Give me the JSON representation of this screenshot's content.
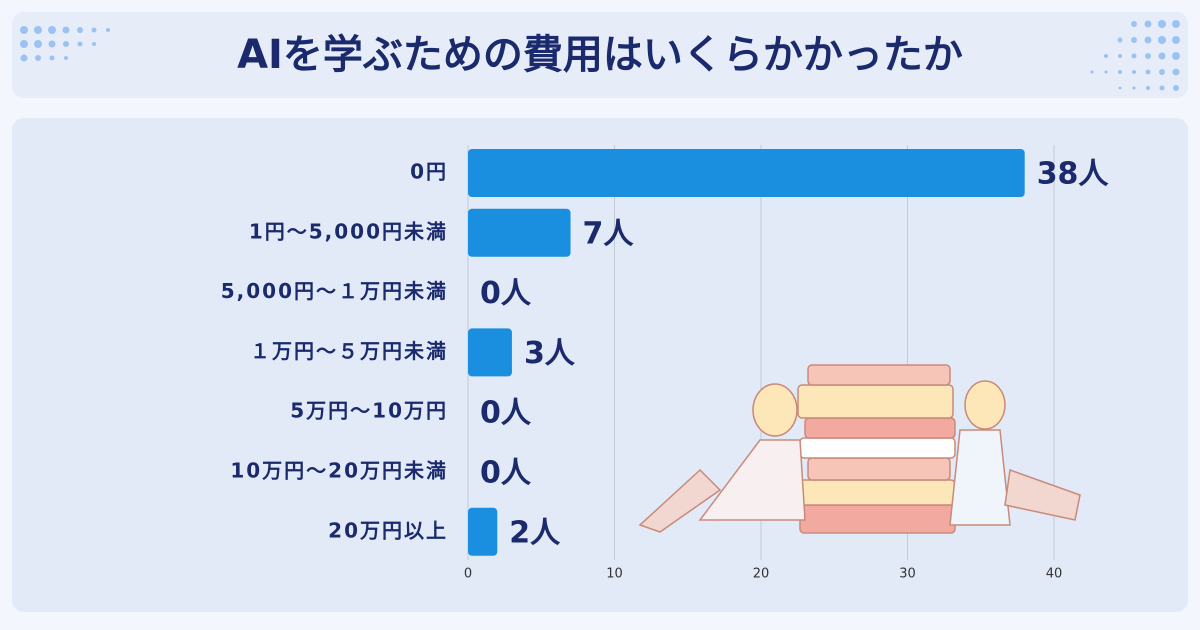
{
  "chart_data": {
    "type": "hbar",
    "title": "AIを学ぶための費用はいくらかかったか",
    "categories": [
      "0円",
      "1円～5,000円未満",
      "5,000円～１万円未満",
      "１万円～５万円未満",
      "5万円～10万円",
      "10万円～20万円未満",
      "20万円以上"
    ],
    "values": [
      38,
      7,
      0,
      3,
      0,
      0,
      2
    ],
    "value_labels": [
      "38人",
      "7人",
      "0人",
      "3人",
      "0人",
      "0人",
      "2人"
    ],
    "color": "#1a8fe0",
    "xlim": [
      0,
      42
    ],
    "xticks": [
      0,
      10,
      20,
      30,
      40
    ],
    "grid": true
  }
}
